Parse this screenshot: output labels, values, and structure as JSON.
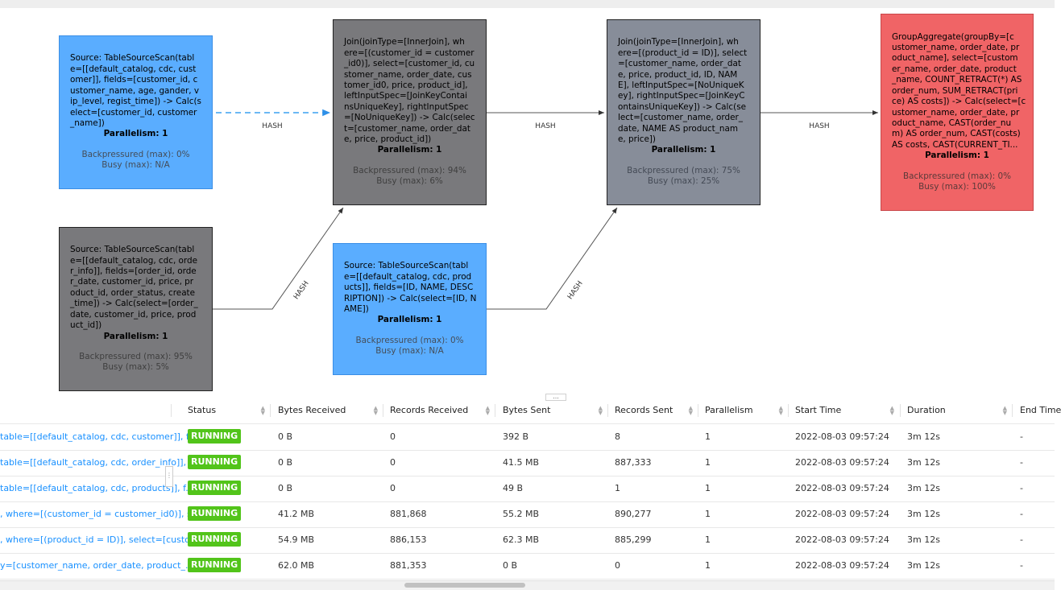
{
  "nodes": [
    {
      "id": "src_customer",
      "desc": "Source: TableSourceScan(tabl\ne=[[default_catalog, cdc, cust\nomer]], fields=[customer_id, c\nustomer_name, age, gander, v\nip_level, regist_time]) -> Calc(s\nelect=[customer_id, customer\n_name])",
      "parallelism": "Parallelism: 1",
      "backpressured": "Backpressured (max): 0%",
      "busy": "Busy (max): N/A",
      "color": "#5aadff"
    },
    {
      "id": "src_order_info",
      "desc": "Source: TableSourceScan(tabl\ne=[[default_catalog, cdc, orde\nr_info]], fields=[order_id, orde\nr_date, customer_id, price, pr\noduct_id, order_status, create\n_time]) -> Calc(select=[order_\ndate, customer_id, price, prod\nuct_id])",
      "parallelism": "Parallelism: 1",
      "backpressured": "Backpressured (max): 95%",
      "busy": "Busy (max): 5%",
      "color": "#79797c"
    },
    {
      "id": "join_customer",
      "desc": "Join(joinType=[InnerJoin], wh\nere=[(customer_id = customer\n_id0)], select=[customer_id, cu\nstomer_name, order_date, cus\ntomer_id0, price, product_id],\nleftInputSpec=[JoinKeyContai\nnsUniqueKey], rightInputSpec\n=[NoUniqueKey]) -> Calc(selec\nt=[customer_name, order_dat\ne, price, product_id])",
      "parallelism": "Parallelism: 1",
      "backpressured": "Backpressured (max): 94%",
      "busy": "Busy (max): 6%",
      "color": "#79797c"
    },
    {
      "id": "src_products",
      "desc": "Source: TableSourceScan(tabl\ne=[[default_catalog, cdc, prod\nucts]], fields=[ID, NAME, DESC\nRIPTION]) -> Calc(select=[ID, N\nAME])",
      "parallelism": "Parallelism: 1",
      "backpressured": "Backpressured (max): 0%",
      "busy": "Busy (max): N/A",
      "color": "#5aadff"
    },
    {
      "id": "join_product",
      "desc": "Join(joinType=[InnerJoin], wh\nere=[(product_id = ID)], select\n=[customer_name, order_dat\ne, price, product_id, ID, NAM\nE], leftInputSpec=[NoUniqueK\ney], rightInputSpec=[JoinKeyC\nontainsUniqueKey]) -> Calc(se\nlect=[customer_name, order_\ndate, NAME AS product_nam\ne, price])",
      "parallelism": "Parallelism: 1",
      "backpressured": "Backpressured (max): 75%",
      "busy": "Busy (max): 25%",
      "color": "#878d99"
    },
    {
      "id": "group_agg",
      "desc": "GroupAggregate(groupBy=[c\nustomer_name, order_date, pr\noduct_name], select=[custom\ner_name, order_date, product\n_name, COUNT_RETRACT(*) AS\norder_num, SUM_RETRACT(pri\nce) AS costs]) -> Calc(select=[c\nustomer_name, order_date, pr\noduct_name, CAST(order_nu\nm) AS order_num, CAST(costs)\nAS costs, CAST(CURRENT_TI...",
      "parallelism": "Parallelism: 1",
      "backpressured": "Backpressured (max): 0%",
      "busy": "Busy (max): 100%",
      "color": "#f06466"
    }
  ],
  "edges": [
    {
      "label": "HASH"
    },
    {
      "label": "HASH"
    },
    {
      "label": "HASH"
    },
    {
      "label": "HASH"
    },
    {
      "label": "HASH"
    }
  ],
  "table": {
    "headers": [
      "Status",
      "Bytes Received",
      "Records Received",
      "Bytes Sent",
      "Records Sent",
      "Parallelism",
      "Start Time",
      "Duration",
      "End Time"
    ],
    "rows": [
      {
        "name": "table=[[default_catalog, cdc, customer]], f...",
        "status": "RUNNING",
        "bytes_received": "0 B",
        "records_received": "0",
        "bytes_sent": "392 B",
        "records_sent": "8",
        "parallelism": "1",
        "start_time": "2022-08-03 09:57:24",
        "duration": "3m 12s",
        "end_time": "-"
      },
      {
        "name": "table=[[default_catalog, cdc, order_info]], ...",
        "status": "RUNNING",
        "bytes_received": "0 B",
        "records_received": "0",
        "bytes_sent": "41.5 MB",
        "records_sent": "887,333",
        "parallelism": "1",
        "start_time": "2022-08-03 09:57:24",
        "duration": "3m 12s",
        "end_time": "-"
      },
      {
        "name": "table=[[default_catalog, cdc, products]], f...",
        "status": "RUNNING",
        "bytes_received": "0 B",
        "records_received": "0",
        "bytes_sent": "49 B",
        "records_sent": "1",
        "parallelism": "1",
        "start_time": "2022-08-03 09:57:24",
        "duration": "3m 12s",
        "end_time": "-"
      },
      {
        "name": ", where=[(customer_id = customer_id0)], s...",
        "status": "RUNNING",
        "bytes_received": "41.2 MB",
        "records_received": "881,868",
        "bytes_sent": "55.2 MB",
        "records_sent": "890,277",
        "parallelism": "1",
        "start_time": "2022-08-03 09:57:24",
        "duration": "3m 12s",
        "end_time": "-"
      },
      {
        "name": ", where=[(product_id = ID)], select=[custo...",
        "status": "RUNNING",
        "bytes_received": "54.9 MB",
        "records_received": "886,153",
        "bytes_sent": "62.3 MB",
        "records_sent": "885,299",
        "parallelism": "1",
        "start_time": "2022-08-03 09:57:24",
        "duration": "3m 12s",
        "end_time": "-"
      },
      {
        "name": "y=[customer_name, order_date, product_...",
        "status": "RUNNING",
        "bytes_received": "62.0 MB",
        "records_received": "881,353",
        "bytes_sent": "0 B",
        "records_sent": "0",
        "parallelism": "1",
        "start_time": "2022-08-03 09:57:24",
        "duration": "3m 12s",
        "end_time": "-"
      }
    ]
  },
  "splitter_label": "...",
  "colors": {
    "running": "#52c41a",
    "link": "#1890ff",
    "source_node": "#5aadff",
    "busy_node": "#79797c",
    "join_node": "#878d99",
    "hot_node": "#f06466"
  }
}
